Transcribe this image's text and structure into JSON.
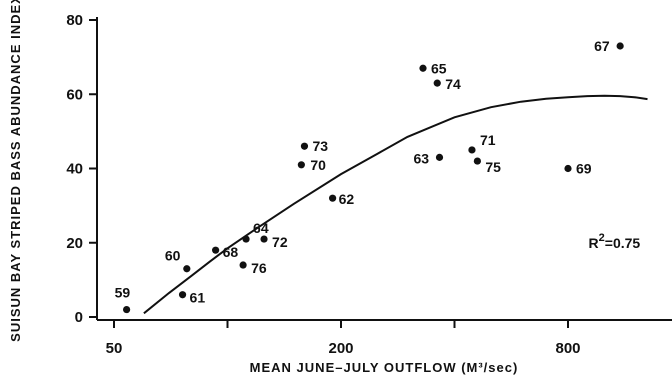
{
  "chart_data": {
    "type": "scatter",
    "x_scale": "log",
    "xlim": [
      50,
      1300
    ],
    "ylim": [
      0,
      80
    ],
    "x_ticks": [
      50,
      200,
      800
    ],
    "x_tick_labels": [
      "50",
      "200",
      "800"
    ],
    "y_ticks": [
      0,
      20,
      40,
      60,
      80
    ],
    "y_tick_labels": [
      "0",
      "20",
      "40",
      "60",
      "80"
    ],
    "xlabel": "MEAN JUNE–JULY OUTFLOW (M³/sec)",
    "ylabel": "SUISUN BAY STRIPED BASS ABUNDANCE INDEX",
    "grid": false,
    "points": [
      {
        "label": "59",
        "x": 54,
        "y": 2
      },
      {
        "label": "60",
        "x": 78,
        "y": 13
      },
      {
        "label": "61",
        "x": 76,
        "y": 6
      },
      {
        "label": "62",
        "x": 190,
        "y": 32
      },
      {
        "label": "63",
        "x": 365,
        "y": 43
      },
      {
        "label": "64",
        "x": 112,
        "y": 21
      },
      {
        "label": "65",
        "x": 330,
        "y": 67
      },
      {
        "label": "67",
        "x": 1100,
        "y": 73
      },
      {
        "label": "68",
        "x": 93,
        "y": 18
      },
      {
        "label": "69",
        "x": 800,
        "y": 40
      },
      {
        "label": "70",
        "x": 157,
        "y": 41
      },
      {
        "label": "71",
        "x": 445,
        "y": 45
      },
      {
        "label": "72",
        "x": 125,
        "y": 21
      },
      {
        "label": "73",
        "x": 160,
        "y": 46
      },
      {
        "label": "74",
        "x": 360,
        "y": 63
      },
      {
        "label": "75",
        "x": 460,
        "y": 42
      },
      {
        "label": "76",
        "x": 110,
        "y": 14
      }
    ],
    "fit_curve": {
      "x": [
        60,
        70,
        80,
        90,
        100,
        120,
        150,
        200,
        250,
        300,
        400,
        500,
        600,
        700,
        800,
        900,
        1000,
        1100,
        1200,
        1300
      ],
      "y": [
        1,
        6.5,
        11,
        15,
        18.5,
        24,
        30.5,
        38.5,
        44,
        48.5,
        53.8,
        56.5,
        58,
        58.8,
        59.2,
        59.5,
        59.6,
        59.5,
        59.2,
        58.7
      ]
    },
    "annotation": {
      "prefix": "R",
      "sup": "2",
      "eq": "=",
      "value": "0.75",
      "x": 1000,
      "y": 20
    }
  }
}
